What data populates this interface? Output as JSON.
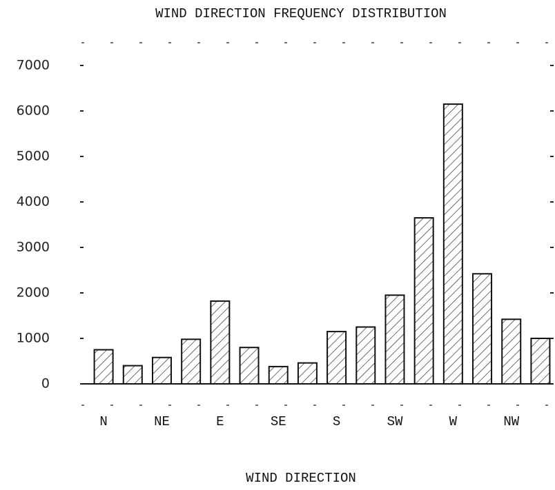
{
  "chart_data": {
    "type": "bar",
    "title": "WIND DIRECTION FREQUENCY DISTRIBUTION",
    "x_label": "WIND DIRECTION",
    "categories": [
      "N",
      null,
      "NE",
      null,
      "E",
      null,
      "SE",
      null,
      "S",
      null,
      "SW",
      null,
      "W",
      null,
      "NW",
      null
    ],
    "values": [
      750,
      400,
      580,
      980,
      1820,
      800,
      380,
      460,
      1150,
      1250,
      1950,
      3650,
      6150,
      2420,
      1420,
      1000
    ],
    "color": "#111111",
    "ylim": [
      0,
      7000
    ],
    "yticks": [
      0,
      1000,
      2000,
      3000,
      4000,
      5000,
      6000,
      7000
    ]
  }
}
